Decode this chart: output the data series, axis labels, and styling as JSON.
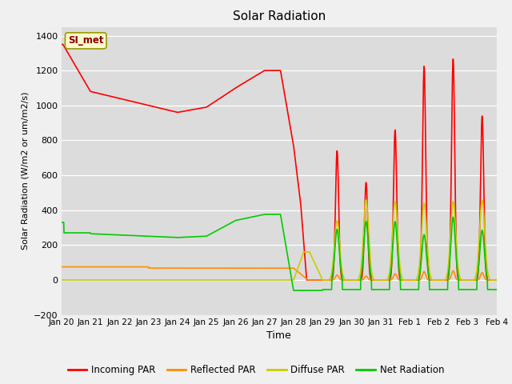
{
  "title": "Solar Radiation",
  "xlabel": "Time",
  "ylabel": "Solar Radiation (W/m2 or um/m2/s)",
  "ylim": [
    -200,
    1450
  ],
  "yticks": [
    -200,
    0,
    200,
    400,
    600,
    800,
    1000,
    1200,
    1400
  ],
  "fig_bg": "#f0f0f0",
  "plot_bg": "#dcdcdc",
  "legend_label": "SI_met",
  "series": {
    "incoming_par": {
      "color": "#ff0000",
      "label": "Incoming PAR",
      "linewidth": 1.2
    },
    "reflected_par": {
      "color": "#ff8c00",
      "label": "Reflected PAR",
      "linewidth": 1.2
    },
    "diffuse_par": {
      "color": "#cccc00",
      "label": "Diffuse PAR",
      "linewidth": 1.2
    },
    "net_radiation": {
      "color": "#00cc00",
      "label": "Net Radiation",
      "linewidth": 1.2
    }
  },
  "xtick_labels": [
    "Jan 20",
    "Jan 21",
    "Jan 22",
    "Jan 23",
    "Jan 24",
    "Jan 25",
    "Jan 26",
    "Jan 27",
    "Jan 28",
    "Jan 29",
    "Jan 30",
    "Jan 31",
    "Feb 1",
    "Feb 2",
    "Feb 3",
    "Feb 4"
  ],
  "n_days": 16
}
